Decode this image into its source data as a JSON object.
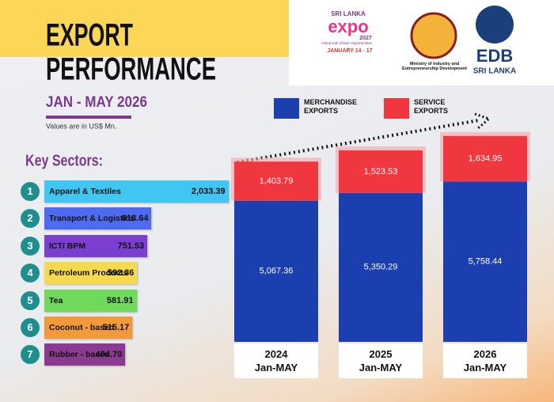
{
  "header": {
    "title_line1": "EXPORT",
    "title_line2": "PERFORMANCE",
    "period": "JAN - MAY 2026",
    "units_note": "Values are in US$ Mn.",
    "sectors_heading": "Key Sectors:"
  },
  "logos": {
    "expo_country": "SRI LANKA",
    "expo_name": "expo",
    "expo_year": "2027",
    "expo_tagline": "Island with Infinite Opportunities",
    "expo_dates": "JANUARY 14 - 17",
    "ministry": "Ministry of Industry and Entrepreneurship Development",
    "edb_name": "EDB",
    "edb_country": "SRI LANKA"
  },
  "chart_data": [
    {
      "type": "stacked-bar",
      "categories": [
        "2024",
        "2025",
        "2026"
      ],
      "category_sublabel": "Jan-MAY",
      "series": [
        {
          "name": "MERCHANDISE EXPORTS",
          "color": "#1b3fae",
          "values": [
            5067.36,
            5350.29,
            5758.44
          ],
          "value_labels": [
            "5,067.36",
            "5,350.29",
            "5,758.44"
          ]
        },
        {
          "name": "SERVICE EXPORTS",
          "color": "#f0373f",
          "values": [
            1403.79,
            1523.53,
            1634.95
          ],
          "value_labels": [
            "1,403.79",
            "1,523.53",
            "1,634.95"
          ]
        }
      ]
    },
    {
      "type": "hbar",
      "ranks": [
        "1",
        "2",
        "3",
        "4",
        "5",
        "6",
        "7"
      ],
      "categories": [
        "Apparel & Textiles",
        "Transport & Logistics",
        "ICT/ BPM",
        "Petroleum Products",
        "Tea",
        "Coconut - based",
        "Rubber - based"
      ],
      "values": [
        2033.39,
        818.64,
        751.53,
        592.36,
        581.91,
        515.17,
        404.7
      ],
      "value_labels": [
        "2,033.39",
        "818.64",
        "751.53",
        "592.36",
        "581.91",
        "515.17",
        "404.70"
      ],
      "colors": [
        "#3fc6f2",
        "#4e6bf0",
        "#7b3fcf",
        "#f6d94c",
        "#6fd95b",
        "#f29a3a",
        "#8b3a91"
      ]
    }
  ]
}
